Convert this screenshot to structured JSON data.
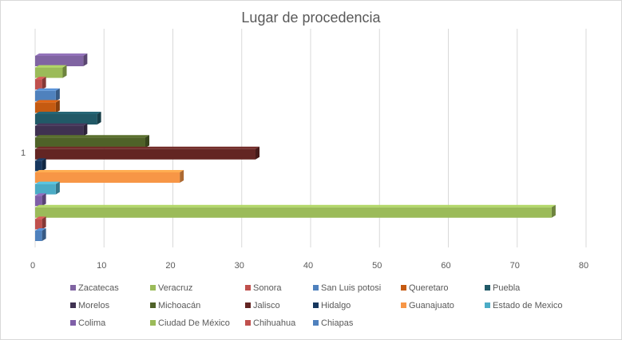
{
  "chart_data": {
    "type": "bar",
    "orientation": "horizontal",
    "style": "3d",
    "title": "Lugar de procedencia",
    "categories": [
      "1"
    ],
    "xlim": [
      0,
      80
    ],
    "xticks": [
      0,
      10,
      20,
      30,
      40,
      50,
      60,
      70,
      80
    ],
    "grid": true,
    "legend_position": "bottom",
    "series": [
      {
        "name": "Zacatecas",
        "values": [
          7
        ],
        "color": "#8064a2"
      },
      {
        "name": "Veracruz",
        "values": [
          4
        ],
        "color": "#9bbb59"
      },
      {
        "name": "Sonora",
        "values": [
          1
        ],
        "color": "#c0504d"
      },
      {
        "name": "San Luis potosi",
        "values": [
          3
        ],
        "color": "#4f81bd"
      },
      {
        "name": "Queretaro",
        "values": [
          3
        ],
        "color": "#c55a11"
      },
      {
        "name": "Puebla",
        "values": [
          9
        ],
        "color": "#215967"
      },
      {
        "name": "Morelos",
        "values": [
          7
        ],
        "color": "#3f3151"
      },
      {
        "name": "Michoacán",
        "values": [
          16
        ],
        "color": "#4f6228"
      },
      {
        "name": "Jalisco",
        "values": [
          32
        ],
        "color": "#632523"
      },
      {
        "name": "Hidalgo",
        "values": [
          1
        ],
        "color": "#17375e"
      },
      {
        "name": "Guanajuato",
        "values": [
          21
        ],
        "color": "#f79646"
      },
      {
        "name": "Estado de Mexico",
        "values": [
          3
        ],
        "color": "#4bacc6"
      },
      {
        "name": "Colima",
        "values": [
          1
        ],
        "color": "#7f5fa8"
      },
      {
        "name": "Ciudad De México",
        "values": [
          75
        ],
        "color": "#9bbb59"
      },
      {
        "name": "Chihuahua",
        "values": [
          1
        ],
        "color": "#c0504d"
      },
      {
        "name": "Chiapas",
        "values": [
          1
        ],
        "color": "#4f81bd"
      }
    ]
  }
}
